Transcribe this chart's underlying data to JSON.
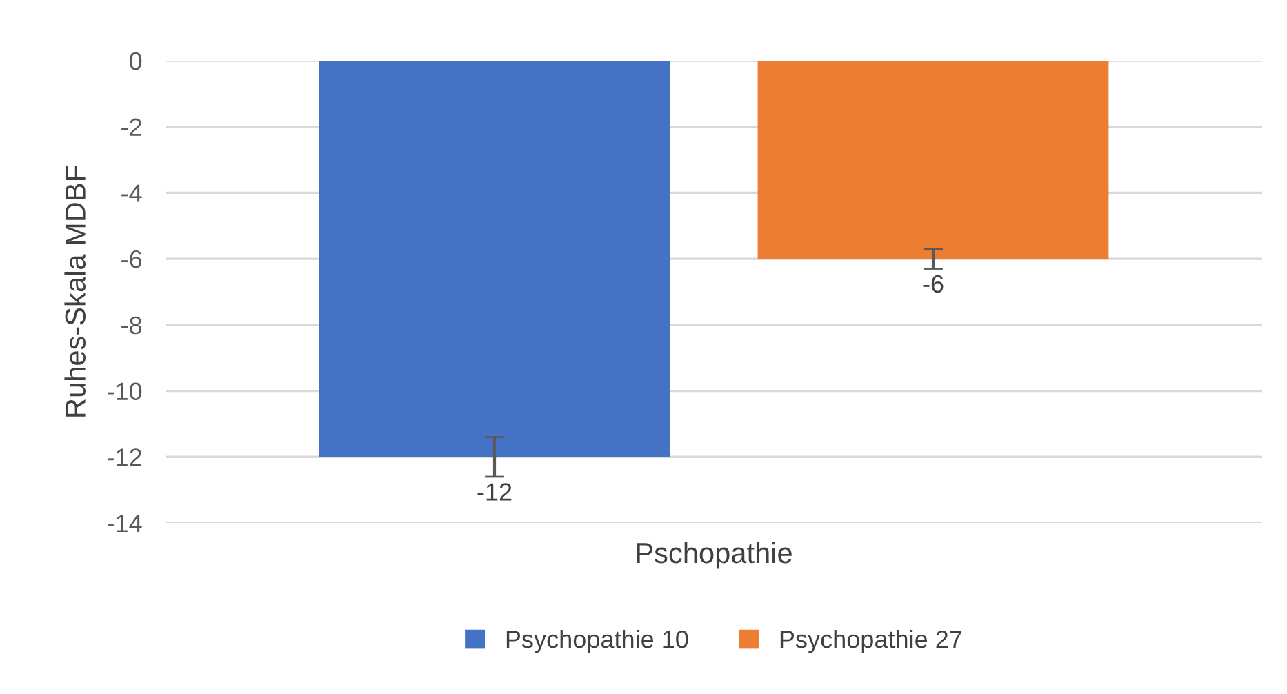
{
  "chart_data": {
    "type": "bar",
    "ylabel": "Ruhes-Skala MDBF",
    "categories": [
      "Pschopathie"
    ],
    "series": [
      {
        "name": "Psychopathie 10",
        "color": "#4472c4",
        "values": [
          -12
        ],
        "errors": [
          0.6
        ]
      },
      {
        "name": "Psychopathie 27",
        "color": "#ed7d31",
        "values": [
          -6
        ],
        "errors": [
          0.3
        ]
      }
    ],
    "ylim": [
      -14,
      0
    ],
    "yticks": [
      0,
      -2,
      -4,
      -6,
      -8,
      -10,
      -12,
      -14
    ],
    "grid": "y",
    "legend": "bottom",
    "data_labels": true
  }
}
